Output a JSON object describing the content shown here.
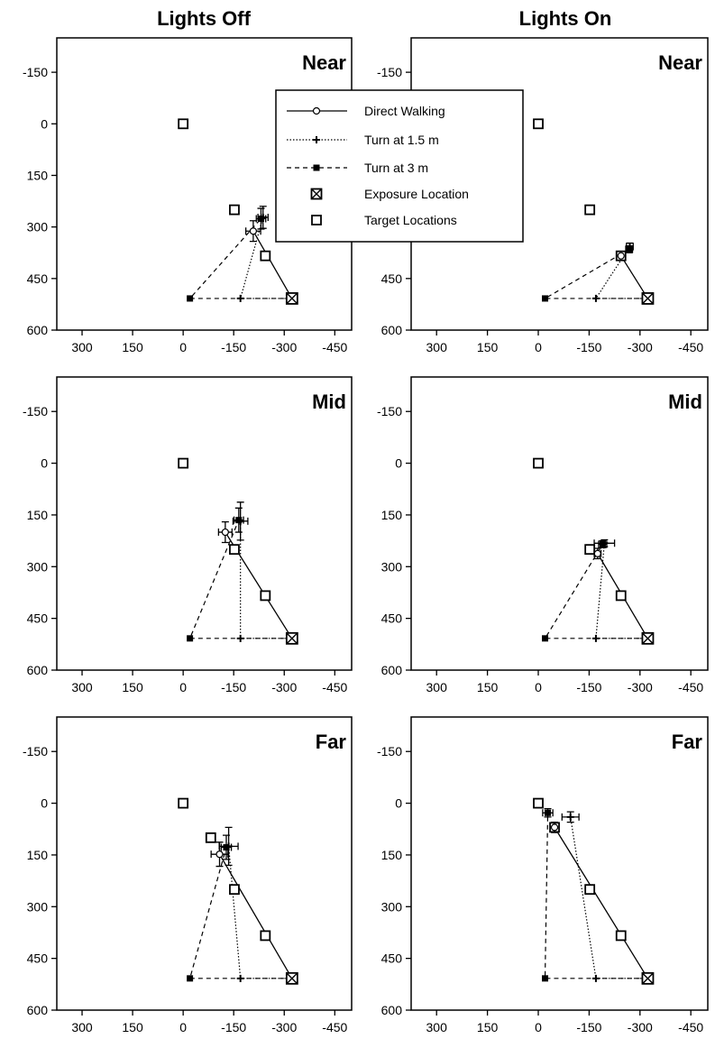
{
  "columns": [
    "Lights Off",
    "Lights On"
  ],
  "legend": {
    "direct": "Direct Walking",
    "turn15": "Turn at 1.5 m",
    "turn3": "Turn at 3 m",
    "exposure": "Exposure Location",
    "targets": "Target Locations"
  },
  "chart_data": [
    {
      "type": "scatter",
      "column": "Lights Off",
      "label": "Near",
      "xlim": [
        375,
        -500
      ],
      "ylim": [
        -250,
        600
      ],
      "xticks": [
        "300",
        "150",
        "0",
        "-150",
        "-300",
        "-450"
      ],
      "yticks": [
        "-150",
        "0",
        "150",
        "300",
        "450",
        "600"
      ],
      "targets": [
        [
          0,
          0
        ],
        [
          -152,
          250
        ],
        [
          -244,
          384
        ]
      ],
      "exposure": [
        -323,
        508
      ],
      "start_15": [
        -170,
        508
      ],
      "start_3": [
        -20,
        508
      ],
      "responses": {
        "direct": {
          "x": -208,
          "y": 312,
          "xerr": 22,
          "yerr": 30
        },
        "turn15": {
          "x": -237,
          "y": 272,
          "xerr": 15,
          "yerr": 32
        },
        "turn3": {
          "x": -231,
          "y": 276,
          "xerr": 14,
          "yerr": 30
        }
      }
    },
    {
      "type": "scatter",
      "column": "Lights On",
      "label": "Near",
      "xlim": [
        375,
        -500
      ],
      "ylim": [
        -250,
        600
      ],
      "xticks": [
        "300",
        "150",
        "0",
        "-150",
        "-300",
        "-450"
      ],
      "yticks": [
        "-150",
        "0",
        "150",
        "300",
        "450",
        "600"
      ],
      "targets": [
        [
          0,
          0
        ],
        [
          -152,
          250
        ],
        [
          -244,
          384
        ]
      ],
      "exposure": [
        -323,
        508
      ],
      "start_15": [
        -170,
        508
      ],
      "start_3": [
        -20,
        508
      ],
      "responses": {
        "direct": {
          "x": -244,
          "y": 384,
          "xerr": 0,
          "yerr": 0
        },
        "turn15": {
          "x": -270,
          "y": 357,
          "xerr": 10,
          "yerr": 10
        },
        "turn3": {
          "x": -268,
          "y": 365,
          "xerr": 10,
          "yerr": 10
        }
      }
    },
    {
      "type": "scatter",
      "column": "Lights Off",
      "label": "Mid",
      "xlim": [
        375,
        -500
      ],
      "ylim": [
        -250,
        600
      ],
      "xticks": [
        "300",
        "150",
        "0",
        "-150",
        "-300",
        "-450"
      ],
      "yticks": [
        "-150",
        "0",
        "150",
        "300",
        "450",
        "600"
      ],
      "targets": [
        [
          0,
          0
        ],
        [
          -152,
          250
        ],
        [
          -244,
          384
        ]
      ],
      "exposure": [
        -323,
        508
      ],
      "start_15": [
        -170,
        508
      ],
      "start_3": [
        -20,
        508
      ],
      "responses": {
        "direct": {
          "x": -125,
          "y": 200,
          "xerr": 20,
          "yerr": 30
        },
        "turn15": {
          "x": -170,
          "y": 168,
          "xerr": 22,
          "yerr": 55
        },
        "turn3": {
          "x": -165,
          "y": 165,
          "xerr": 14,
          "yerr": 35
        }
      }
    },
    {
      "type": "scatter",
      "column": "Lights On",
      "label": "Mid",
      "xlim": [
        375,
        -500
      ],
      "ylim": [
        -250,
        600
      ],
      "xticks": [
        "300",
        "150",
        "0",
        "-150",
        "-300",
        "-450"
      ],
      "yticks": [
        "-150",
        "0",
        "150",
        "300",
        "450",
        "600"
      ],
      "targets": [
        [
          0,
          0
        ],
        [
          -152,
          250
        ],
        [
          -244,
          384
        ]
      ],
      "exposure": [
        -323,
        508
      ],
      "start_15": [
        -170,
        508
      ],
      "start_3": [
        -20,
        508
      ],
      "responses": {
        "direct": {
          "x": -175,
          "y": 262,
          "xerr": 10,
          "yerr": 15
        },
        "turn15": {
          "x": -195,
          "y": 232,
          "xerr": 30,
          "yerr": 10
        },
        "turn3": {
          "x": -190,
          "y": 235,
          "xerr": 12,
          "yerr": 10
        }
      }
    },
    {
      "type": "scatter",
      "column": "Lights Off",
      "label": "Far",
      "xlim": [
        375,
        -500
      ],
      "ylim": [
        -250,
        600
      ],
      "xticks": [
        "300",
        "150",
        "0",
        "-150",
        "-300",
        "-450"
      ],
      "yticks": [
        "-150",
        "0",
        "150",
        "300",
        "450",
        "600"
      ],
      "targets": [
        [
          0,
          0
        ],
        [
          -152,
          250
        ],
        [
          -244,
          384
        ],
        [
          -82,
          100
        ]
      ],
      "exposure": [
        -323,
        508
      ],
      "start_15": [
        -170,
        508
      ],
      "start_3": [
        -20,
        508
      ],
      "responses": {
        "direct": {
          "x": -108,
          "y": 148,
          "xerr": 25,
          "yerr": 35
        },
        "turn15": {
          "x": -135,
          "y": 125,
          "xerr": 28,
          "yerr": 55
        },
        "turn3": {
          "x": -128,
          "y": 128,
          "xerr": 15,
          "yerr": 35
        }
      }
    },
    {
      "type": "scatter",
      "column": "Lights On",
      "label": "Far",
      "xlim": [
        375,
        -500
      ],
      "ylim": [
        -250,
        600
      ],
      "xticks": [
        "300",
        "150",
        "0",
        "-150",
        "-300",
        "-450"
      ],
      "yticks": [
        "-150",
        "0",
        "150",
        "300",
        "450",
        "600"
      ],
      "targets": [
        [
          0,
          0
        ],
        [
          -152,
          250
        ],
        [
          -244,
          384
        ],
        [
          -48,
          70
        ]
      ],
      "exposure": [
        -323,
        508
      ],
      "start_15": [
        -170,
        508
      ],
      "start_3": [
        -20,
        508
      ],
      "responses": {
        "direct": {
          "x": -48,
          "y": 70,
          "xerr": 0,
          "yerr": 15
        },
        "turn15": {
          "x": -95,
          "y": 40,
          "xerr": 25,
          "yerr": 15
        },
        "turn3": {
          "x": -28,
          "y": 28,
          "xerr": 15,
          "yerr": 12
        }
      }
    }
  ]
}
